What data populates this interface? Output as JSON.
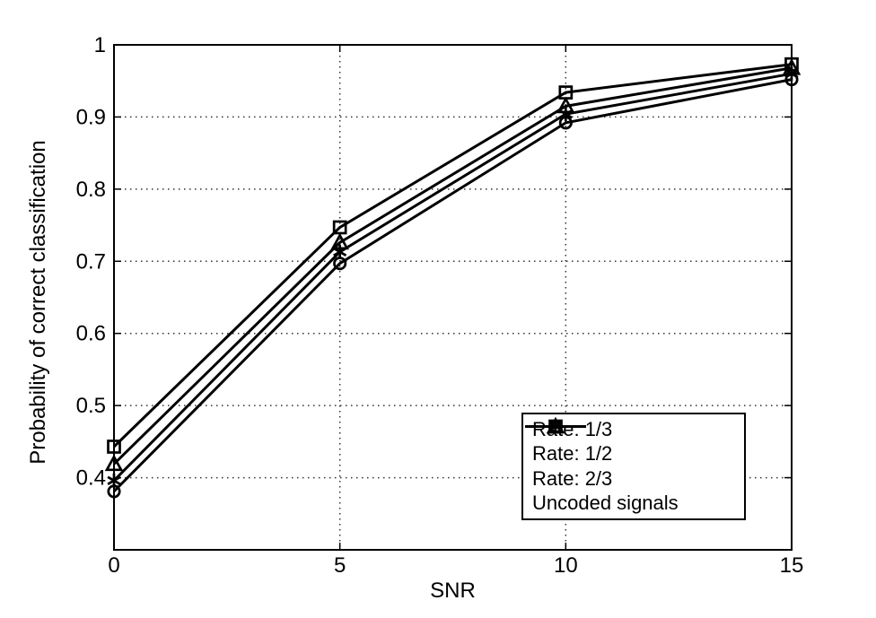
{
  "chart_data": {
    "type": "line",
    "title": "",
    "xlabel": "SNR",
    "ylabel": "Probability of correct classification",
    "x": [
      0,
      5,
      10,
      15
    ],
    "xlim": [
      0,
      15
    ],
    "ylim": [
      0.3,
      1.0
    ],
    "xticks": [
      0,
      5,
      10,
      15
    ],
    "xtick_labels": [
      "0",
      "5",
      "10",
      "15"
    ],
    "yticks": [
      0.4,
      0.5,
      0.6,
      0.7,
      0.8,
      0.9,
      1.0
    ],
    "ytick_labels": [
      "0.4",
      "0.5",
      "0.6",
      "0.7",
      "0.8",
      "0.9",
      "1"
    ],
    "grid": true,
    "legend_position": "lower right",
    "line_color": "#000000",
    "background_color": "#ffffff",
    "series": [
      {
        "name": "Rate: 1/3",
        "marker": "circle",
        "values": [
          0.381,
          0.697,
          0.892,
          0.952
        ]
      },
      {
        "name": "Rate: 1/2",
        "marker": "asterisk",
        "values": [
          0.396,
          0.713,
          0.904,
          0.96
        ]
      },
      {
        "name": "Rate: 2/3",
        "marker": "triangle",
        "values": [
          0.419,
          0.726,
          0.915,
          0.968
        ]
      },
      {
        "name": "Uncoded signals",
        "marker": "square",
        "values": [
          0.443,
          0.747,
          0.934,
          0.973
        ]
      }
    ]
  }
}
